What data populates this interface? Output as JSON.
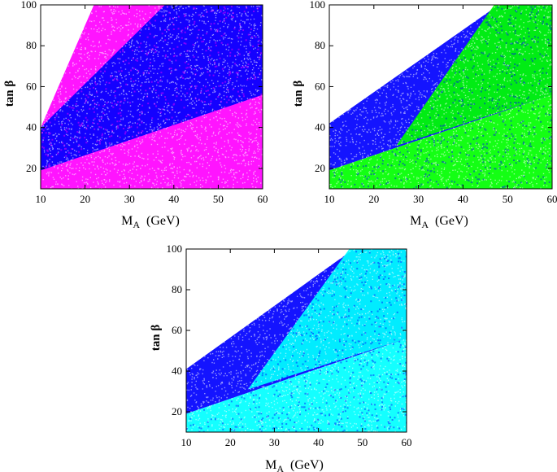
{
  "figure": {
    "colors": {
      "magenta": "#ff00ff",
      "blue": "#0000ff",
      "green": "#00ff00",
      "cyan": "#00ffff",
      "white": "#ffffff"
    }
  },
  "chart_data": [
    {
      "type": "scatter",
      "xlabel": "M",
      "xlabel_sub": "A",
      "xlabel_unit": "(GeV)",
      "ylabel": "tan β",
      "xlim": [
        10,
        60
      ],
      "ylim": [
        10,
        100
      ],
      "xticks": [
        "10",
        "20",
        "30",
        "40",
        "50",
        "60"
      ],
      "yticks": [
        "20",
        "40",
        "60",
        "80",
        "100"
      ],
      "grid": false,
      "series": [
        {
          "color": "#ff00ff",
          "region": [
            [
              10,
              10
            ],
            [
              60,
              10
            ],
            [
              60,
              100
            ],
            [
              22,
              100
            ],
            [
              10,
              40
            ]
          ]
        },
        {
          "color": "#0000ff",
          "region": [
            [
              10,
              19
            ],
            [
              60,
              56
            ],
            [
              60,
              100
            ],
            [
              38,
              100
            ],
            [
              10,
              40
            ]
          ]
        }
      ]
    },
    {
      "type": "scatter",
      "xlabel": "M",
      "xlabel_sub": "A",
      "xlabel_unit": "(GeV)",
      "ylabel": "tan β",
      "xlim": [
        10,
        60
      ],
      "ylim": [
        10,
        100
      ],
      "xticks": [
        "10",
        "20",
        "30",
        "40",
        "50",
        "60"
      ],
      "yticks": [
        "20",
        "40",
        "60",
        "80",
        "100"
      ],
      "grid": false,
      "series": [
        {
          "color": "#0000ff",
          "region": [
            [
              10,
              19
            ],
            [
              60,
              56
            ],
            [
              60,
              100
            ],
            [
              48,
              100
            ],
            [
              10,
              42
            ]
          ]
        },
        {
          "color": "#00ff00",
          "region": [
            [
              25,
              31
            ],
            [
              60,
              56
            ],
            [
              60,
              100
            ],
            [
              47,
              100
            ]
          ]
        },
        {
          "color": "#00ff00",
          "region": [
            [
              10,
              10
            ],
            [
              60,
              10
            ],
            [
              60,
              56
            ],
            [
              10,
              19
            ]
          ]
        }
      ]
    },
    {
      "type": "scatter",
      "xlabel": "M",
      "xlabel_sub": "A",
      "xlabel_unit": "(GeV)",
      "ylabel": "tan β",
      "xlim": [
        10,
        60
      ],
      "ylim": [
        10,
        100
      ],
      "xticks": [
        "10",
        "20",
        "30",
        "40",
        "50",
        "60"
      ],
      "yticks": [
        "20",
        "40",
        "60",
        "80",
        "100"
      ],
      "grid": false,
      "series": [
        {
          "color": "#0000ff",
          "region": [
            [
              10,
              19
            ],
            [
              60,
              56
            ],
            [
              60,
              100
            ],
            [
              48,
              100
            ],
            [
              10,
              41
            ]
          ]
        },
        {
          "color": "#00ffff",
          "region": [
            [
              24,
              31
            ],
            [
              60,
              56
            ],
            [
              60,
              100
            ],
            [
              47,
              100
            ]
          ]
        },
        {
          "color": "#00ffff",
          "region": [
            [
              10,
              10
            ],
            [
              60,
              10
            ],
            [
              60,
              56
            ],
            [
              10,
              19
            ]
          ]
        }
      ]
    }
  ]
}
